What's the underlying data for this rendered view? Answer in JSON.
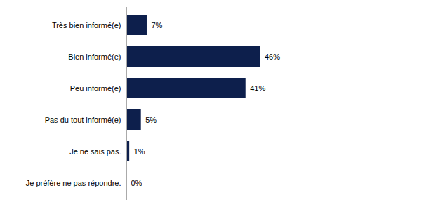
{
  "chart_data": {
    "type": "bar",
    "orientation": "horizontal",
    "categories": [
      "Très bien informé(e)",
      "Bien informé(e)",
      "Peu informé(e)",
      "Pas du tout informé(e)",
      "Je ne sais pas.",
      "Je préfère ne pas répondre."
    ],
    "values": [
      7,
      46,
      41,
      5,
      1,
      0
    ],
    "value_labels": [
      "7%",
      "46%",
      "41%",
      "5%",
      "1%",
      "0%"
    ],
    "data_labels": true,
    "color": "#0d1f4c",
    "xlim": [
      0,
      100
    ],
    "tick_labels": "y",
    "grid": false
  }
}
